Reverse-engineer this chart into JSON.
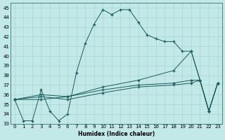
{
  "xlabel": "Humidex (Indice chaleur)",
  "ylabel": "",
  "background_color": "#c2e8e8",
  "grid_color": "#a8d4d4",
  "line_color": "#1a5c5c",
  "xlim": [
    -0.5,
    23.5
  ],
  "ylim": [
    33,
    45.5
  ],
  "yticks": [
    33,
    34,
    35,
    36,
    37,
    38,
    39,
    40,
    41,
    42,
    43,
    44,
    45
  ],
  "xticks": [
    0,
    1,
    2,
    3,
    4,
    5,
    6,
    7,
    8,
    9,
    10,
    11,
    12,
    13,
    14,
    15,
    16,
    17,
    18,
    19,
    20,
    21,
    22,
    23
  ],
  "lines": [
    {
      "x": [
        0,
        1,
        2,
        3,
        4,
        5,
        6,
        7,
        8,
        9,
        10,
        11,
        12,
        13,
        14,
        15,
        16,
        17,
        18,
        19,
        20,
        21,
        22,
        23
      ],
      "y": [
        35.5,
        33.3,
        33.3,
        36.5,
        34.3,
        33.3,
        34.0,
        38.3,
        41.3,
        43.3,
        44.8,
        44.3,
        44.8,
        44.8,
        43.5,
        42.2,
        41.8,
        41.5,
        41.5,
        40.5,
        40.5,
        37.5,
        34.3,
        37.2
      ]
    },
    {
      "x": [
        0,
        3,
        6,
        10,
        14,
        18,
        20,
        21,
        22,
        23
      ],
      "y": [
        35.5,
        35.8,
        35.5,
        36.2,
        36.8,
        37.0,
        37.2,
        37.5,
        34.3,
        37.2
      ]
    },
    {
      "x": [
        0,
        3,
        6,
        10,
        14,
        18,
        20,
        21,
        22,
        23
      ],
      "y": [
        35.5,
        36.0,
        35.8,
        36.5,
        37.0,
        37.2,
        37.5,
        37.5,
        34.3,
        37.2
      ]
    },
    {
      "x": [
        0,
        3,
        6,
        10,
        14,
        18,
        20,
        21,
        22,
        23
      ],
      "y": [
        35.5,
        35.5,
        35.8,
        36.8,
        37.5,
        38.5,
        40.5,
        37.5,
        34.3,
        37.2
      ]
    }
  ]
}
